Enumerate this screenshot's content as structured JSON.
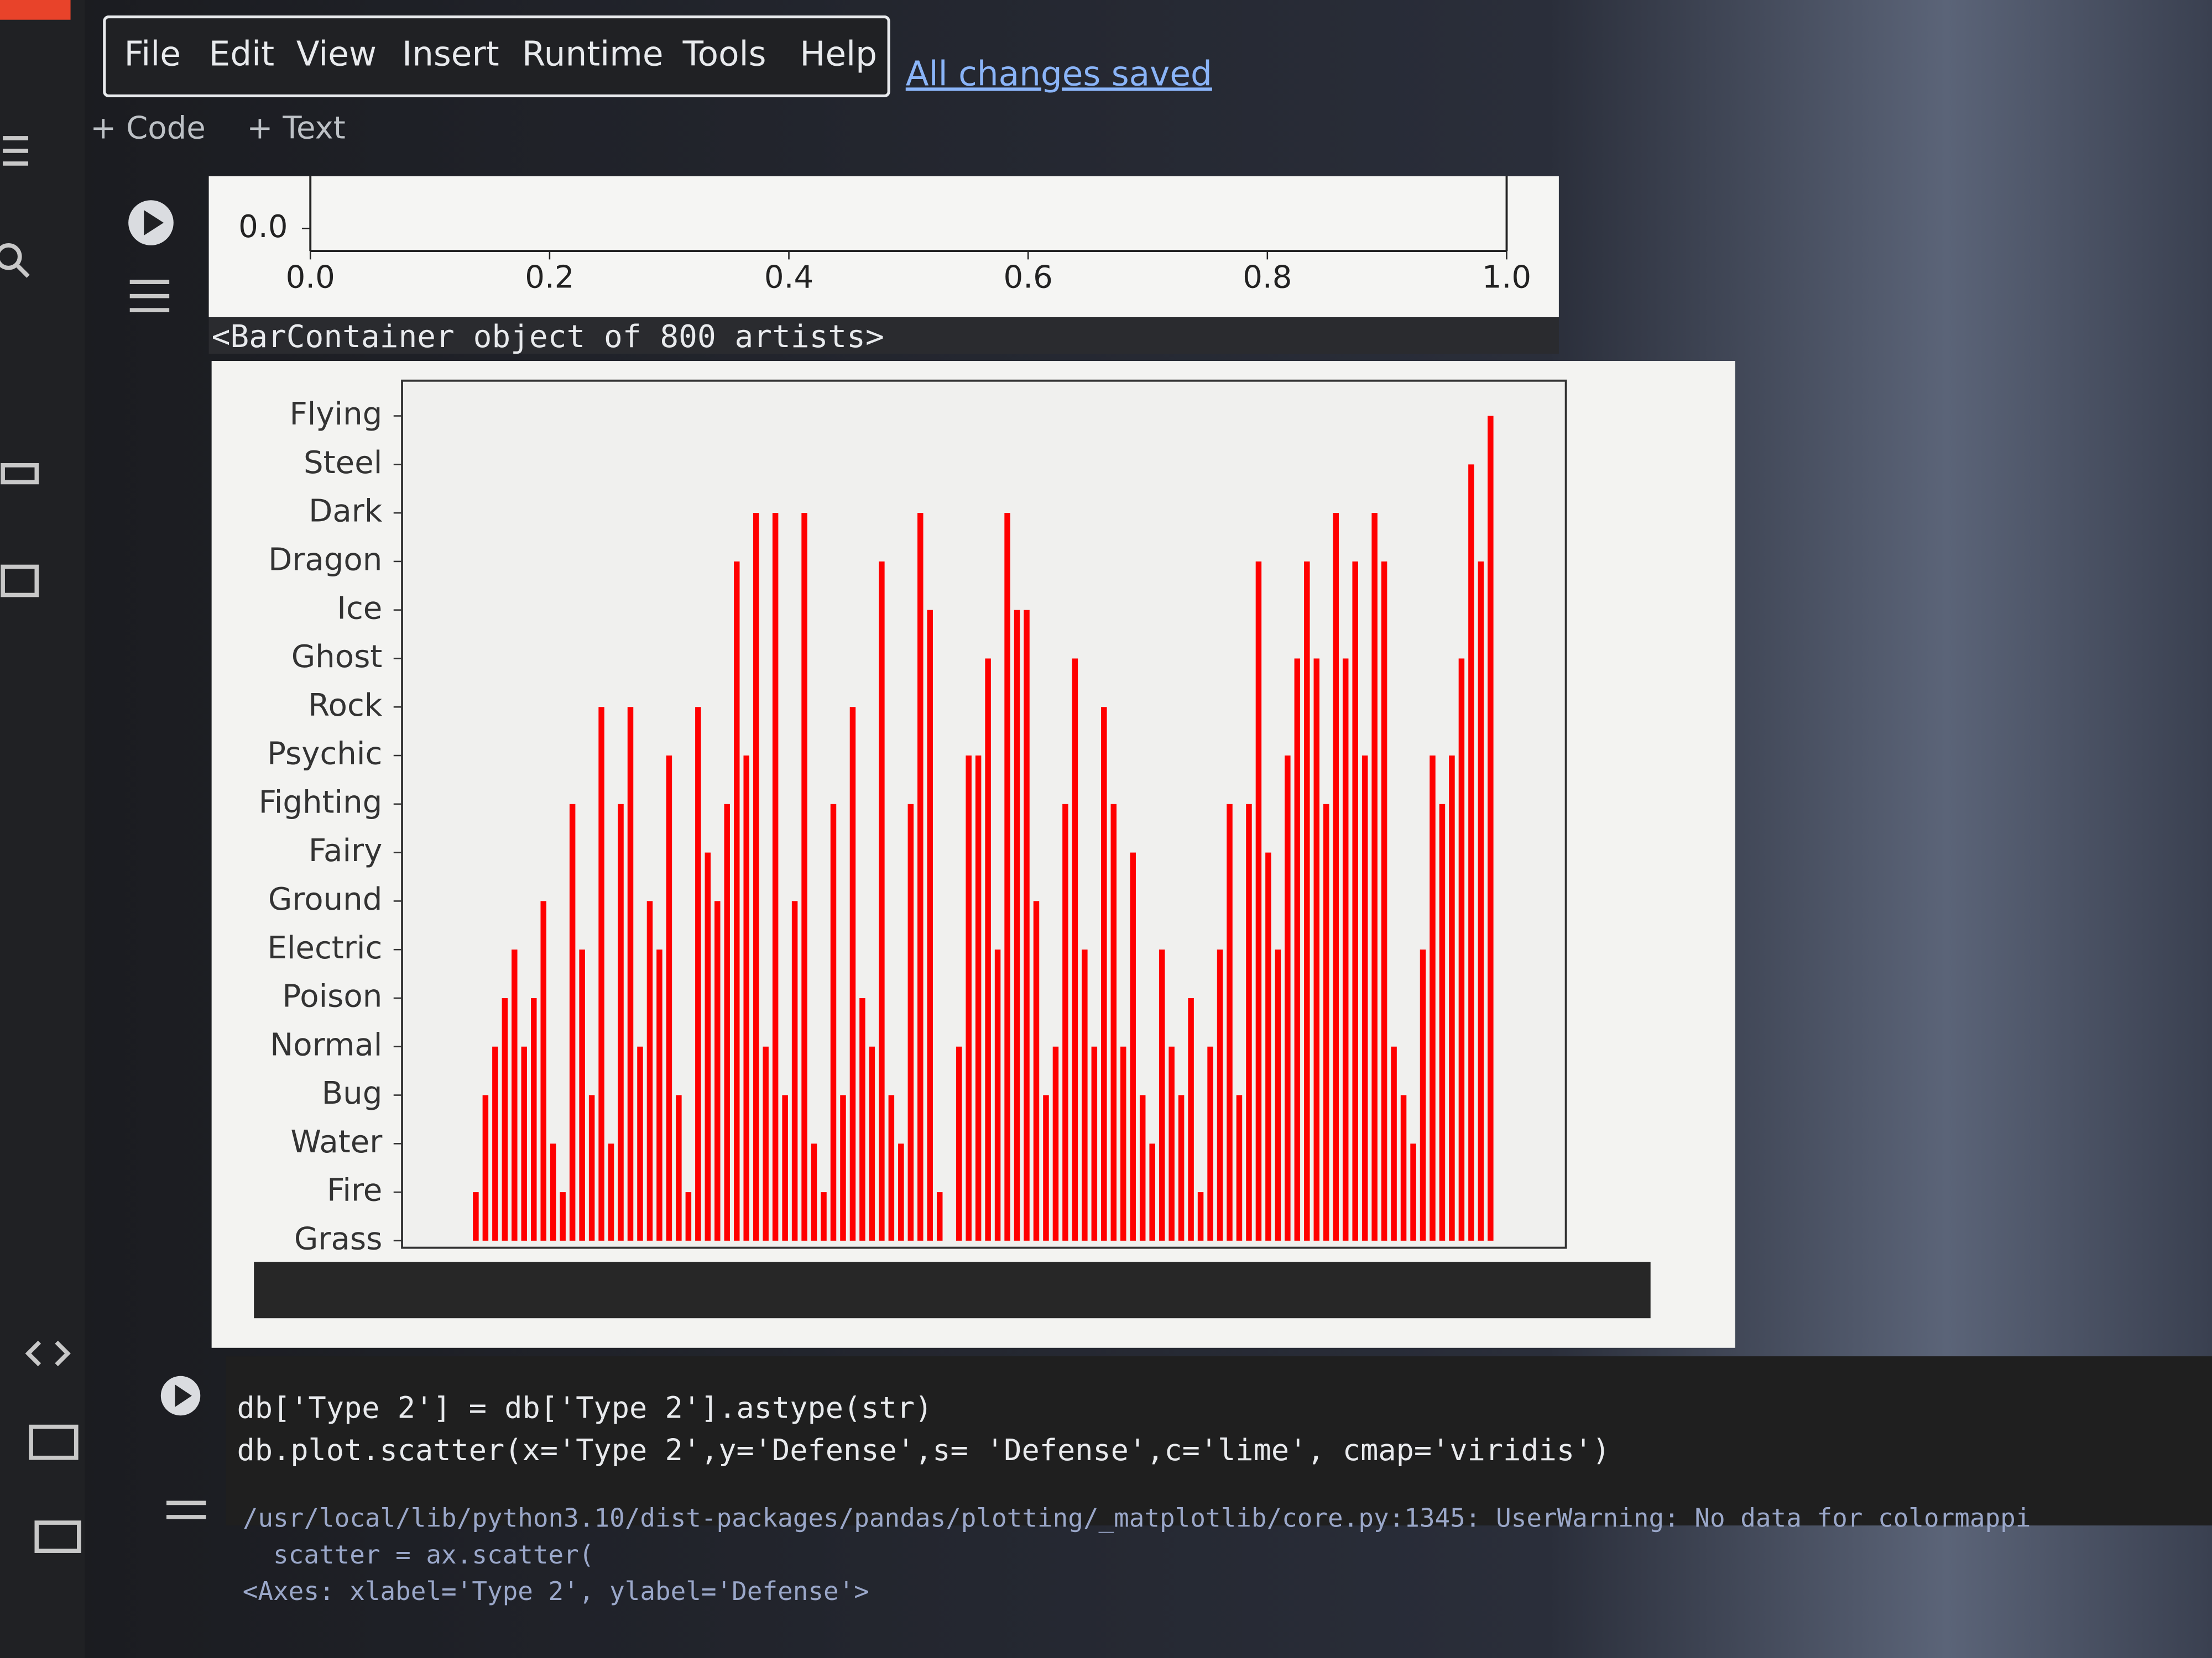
{
  "menu": {
    "items": [
      "File",
      "Edit",
      "View",
      "Insert",
      "Runtime",
      "Tools",
      "Help"
    ],
    "status": "All changes saved"
  },
  "toolbar": {
    "add_code": "+ Code",
    "add_text": "+ Text"
  },
  "cells": [
    {
      "output_text": "<BarContainer object of 800 artists>"
    },
    {
      "code": [
        "db['Type 2'] = db['Type 2'].astype(str)",
        "db.plot.scatter(x='Type 2',y='Defense',s= 'Defense',c='lime', cmap='viridis')"
      ],
      "output": [
        "/usr/local/lib/python3.10/dist-packages/pandas/plotting/_matplotlib/core.py:1345: UserWarning: No data for colormappi",
        "  scatter = ax.scatter(",
        "<Axes: xlabel='Type 2', ylabel='Defense'>"
      ]
    }
  ],
  "chart_data": [
    {
      "type": "axes",
      "xlim": [
        0,
        1
      ],
      "xticks": [
        {
          "value": 0,
          "label": "0.0"
        },
        0.2,
        0.4,
        0.6,
        0.8,
        {
          "value": 1,
          "label": "1.0"
        }
      ],
      "yticks": [
        {
          "value": 0,
          "label": "0.0"
        }
      ]
    },
    {
      "type": "bar",
      "color": "red",
      "y_categories": [
        "Grass",
        "Fire",
        "Water",
        "Bug",
        "Normal",
        "Poison",
        "Electric",
        "Ground",
        "Fairy",
        "Fighting",
        "Psychic",
        "Rock",
        "Ghost",
        "Ice",
        "Dragon",
        "Dark",
        "Steel",
        "Flying"
      ],
      "values": [
        "Grass",
        "Fire",
        "Bug",
        "Normal",
        "Poison",
        "Electric",
        "Normal",
        "Poison",
        "Ground",
        "Water",
        "Fire",
        "Fighting",
        "Electric",
        "Bug",
        "Rock",
        "Water",
        "Fighting",
        "Rock",
        "Normal",
        "Ground",
        "Electric",
        "Psychic",
        "Bug",
        "Fire",
        "Rock",
        "Fairy",
        "Ground",
        "Fighting",
        "Dragon",
        "Psychic",
        "Dark",
        "Normal",
        "Dark",
        "Bug",
        "Ground",
        "Dark",
        "Water",
        "Fire",
        "Fighting",
        "Bug",
        "Rock",
        "Poison",
        "Normal",
        "Dragon",
        "Bug",
        "Water",
        "Fighting",
        "Dark",
        "Ice",
        "Fire",
        "Grass",
        "Normal",
        "Psychic",
        "Psychic",
        "Ghost",
        "Electric",
        "Dark",
        "Ice",
        "Ice",
        "Ground",
        "Bug",
        "Normal",
        "Fighting",
        "Ghost",
        "Electric",
        "Normal",
        "Rock",
        "Fighting",
        "Normal",
        "Fairy",
        "Bug",
        "Water",
        "Electric",
        "Normal",
        "Bug",
        "Poison",
        "Fire",
        "Normal",
        "Electric",
        "Fighting",
        "Bug",
        "Fighting",
        "Dragon",
        "Fairy",
        "Electric",
        "Psychic",
        "Ghost",
        "Dragon",
        "Ghost",
        "Fighting",
        "Dark",
        "Ghost",
        "Dragon",
        "Psychic",
        "Dark",
        "Dragon",
        "Normal",
        "Bug",
        "Water",
        "Electric",
        "Psychic",
        "Fighting",
        "Psychic",
        "Ghost",
        "Steel",
        "Dragon",
        "Flying"
      ]
    }
  ]
}
